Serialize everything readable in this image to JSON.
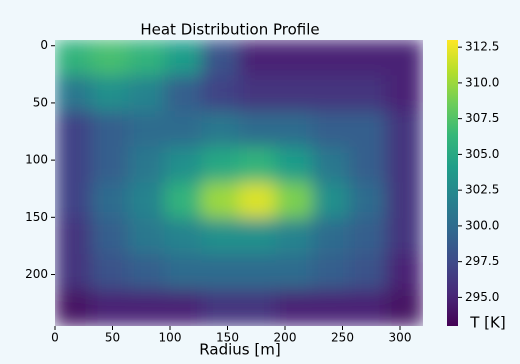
{
  "chart_data": {
    "type": "heatmap",
    "title": "Heat Distribution Profile",
    "x_label": "Radius [m]",
    "colorbar_label": "T [K]",
    "colormap": "viridis",
    "xlim": [
      0,
      320
    ],
    "ylim": [
      -5,
      245
    ],
    "xticks": [
      0,
      50,
      100,
      150,
      200,
      250,
      300
    ],
    "yticks": [
      0,
      50,
      100,
      150,
      200
    ],
    "clim": [
      293,
      313
    ],
    "cticks": [
      {
        "value": 295,
        "label": "295.0"
      },
      {
        "value": 297.5,
        "label": "297.5"
      },
      {
        "value": 300,
        "label": "300.0"
      },
      {
        "value": 302.5,
        "label": "302.5"
      },
      {
        "value": 305,
        "label": "305.0"
      },
      {
        "value": 307.5,
        "label": "307.5"
      },
      {
        "value": 310,
        "label": "310.0"
      },
      {
        "value": 312.5,
        "label": "312.5"
      }
    ],
    "values": [
      [
        306,
        307,
        306,
        304,
        298,
        295,
        295,
        295,
        295,
        295
      ],
      [
        301,
        303,
        302,
        299,
        297,
        296,
        296,
        296,
        296,
        295
      ],
      [
        297,
        299,
        300,
        300,
        301,
        300,
        300,
        299,
        299,
        296
      ],
      [
        297,
        299,
        301,
        303,
        305,
        306,
        304,
        301,
        299,
        296
      ],
      [
        297,
        300,
        302,
        306,
        310,
        312,
        309,
        303,
        300,
        296
      ],
      [
        296,
        299,
        301,
        302,
        303,
        303,
        302,
        300,
        299,
        296
      ],
      [
        296,
        298,
        299,
        300,
        300,
        300,
        300,
        299,
        298,
        295
      ],
      [
        294,
        295,
        295,
        295,
        296,
        296,
        295,
        295,
        295,
        294
      ]
    ]
  }
}
